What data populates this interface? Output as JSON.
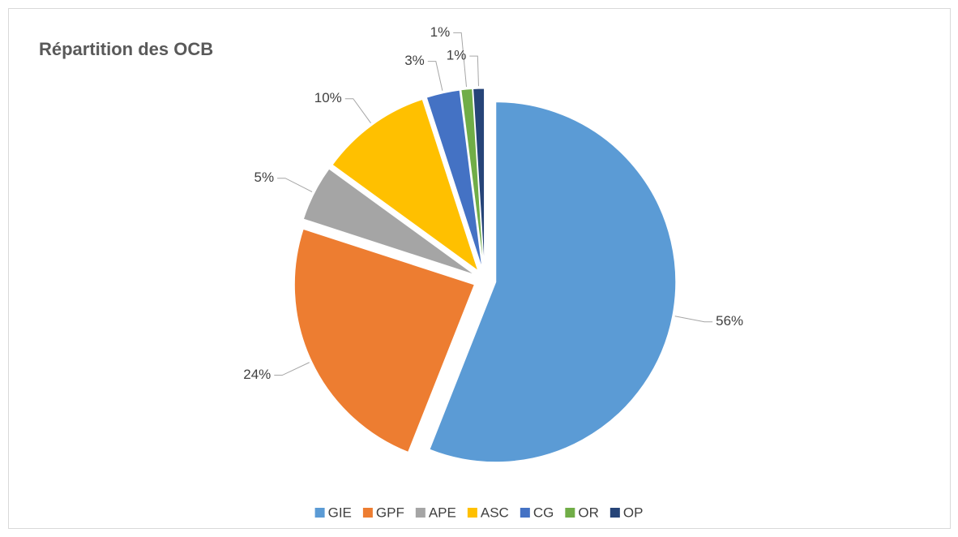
{
  "chart_data": {
    "type": "pie",
    "title": "Répartition des OCB",
    "categories": [
      "GIE",
      "GPF",
      "APE",
      "ASC",
      "CG",
      "OR",
      "OP"
    ],
    "values": [
      56,
      24,
      5,
      10,
      3,
      1,
      1
    ],
    "value_labels": [
      "56%",
      "24%",
      "5%",
      "10%",
      "3%",
      "1%",
      "1%"
    ],
    "colors": [
      "#5b9bd5",
      "#ed7d31",
      "#a5a5a5",
      "#ffc000",
      "#4472c4",
      "#70ad47",
      "#264478"
    ],
    "legend": "bottom"
  }
}
